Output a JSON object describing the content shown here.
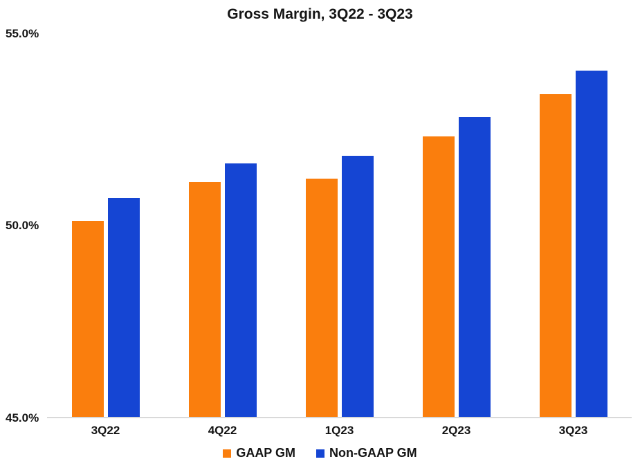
{
  "title": "Gross Margin, 3Q22 - 3Q23",
  "y_axis": {
    "ticks_top_to_bottom": [
      "55.0%",
      "50.0%",
      "45.0%"
    ],
    "min": 45,
    "max": 55
  },
  "colors": {
    "gaap": "#FA7E0D",
    "non_gaap": "#1545D3",
    "axis_line": "#D9D9D9",
    "text": "#141414",
    "background": "#FFFFFF"
  },
  "legend": {
    "position": "bottom",
    "items": [
      "GAAP GM",
      "Non-GAAP GM"
    ]
  },
  "chart_data": {
    "type": "bar",
    "title": "Gross Margin, 3Q22 - 3Q23",
    "categories": [
      "3Q22",
      "4Q22",
      "1Q23",
      "2Q23",
      "3Q23"
    ],
    "series": [
      {
        "name": "GAAP GM",
        "color": "#FA7E0D",
        "values": [
          50.1,
          51.1,
          51.2,
          52.3,
          53.4
        ]
      },
      {
        "name": "Non-GAAP GM",
        "color": "#1545D3",
        "values": [
          50.7,
          51.6,
          51.8,
          52.8,
          54.0
        ]
      }
    ],
    "xlabel": "",
    "ylabel": "",
    "ylim": [
      45,
      55
    ],
    "y_ticks": [
      45,
      50,
      55
    ],
    "y_tick_format": "percent_one_decimal",
    "grid": false,
    "legend_position": "bottom"
  }
}
